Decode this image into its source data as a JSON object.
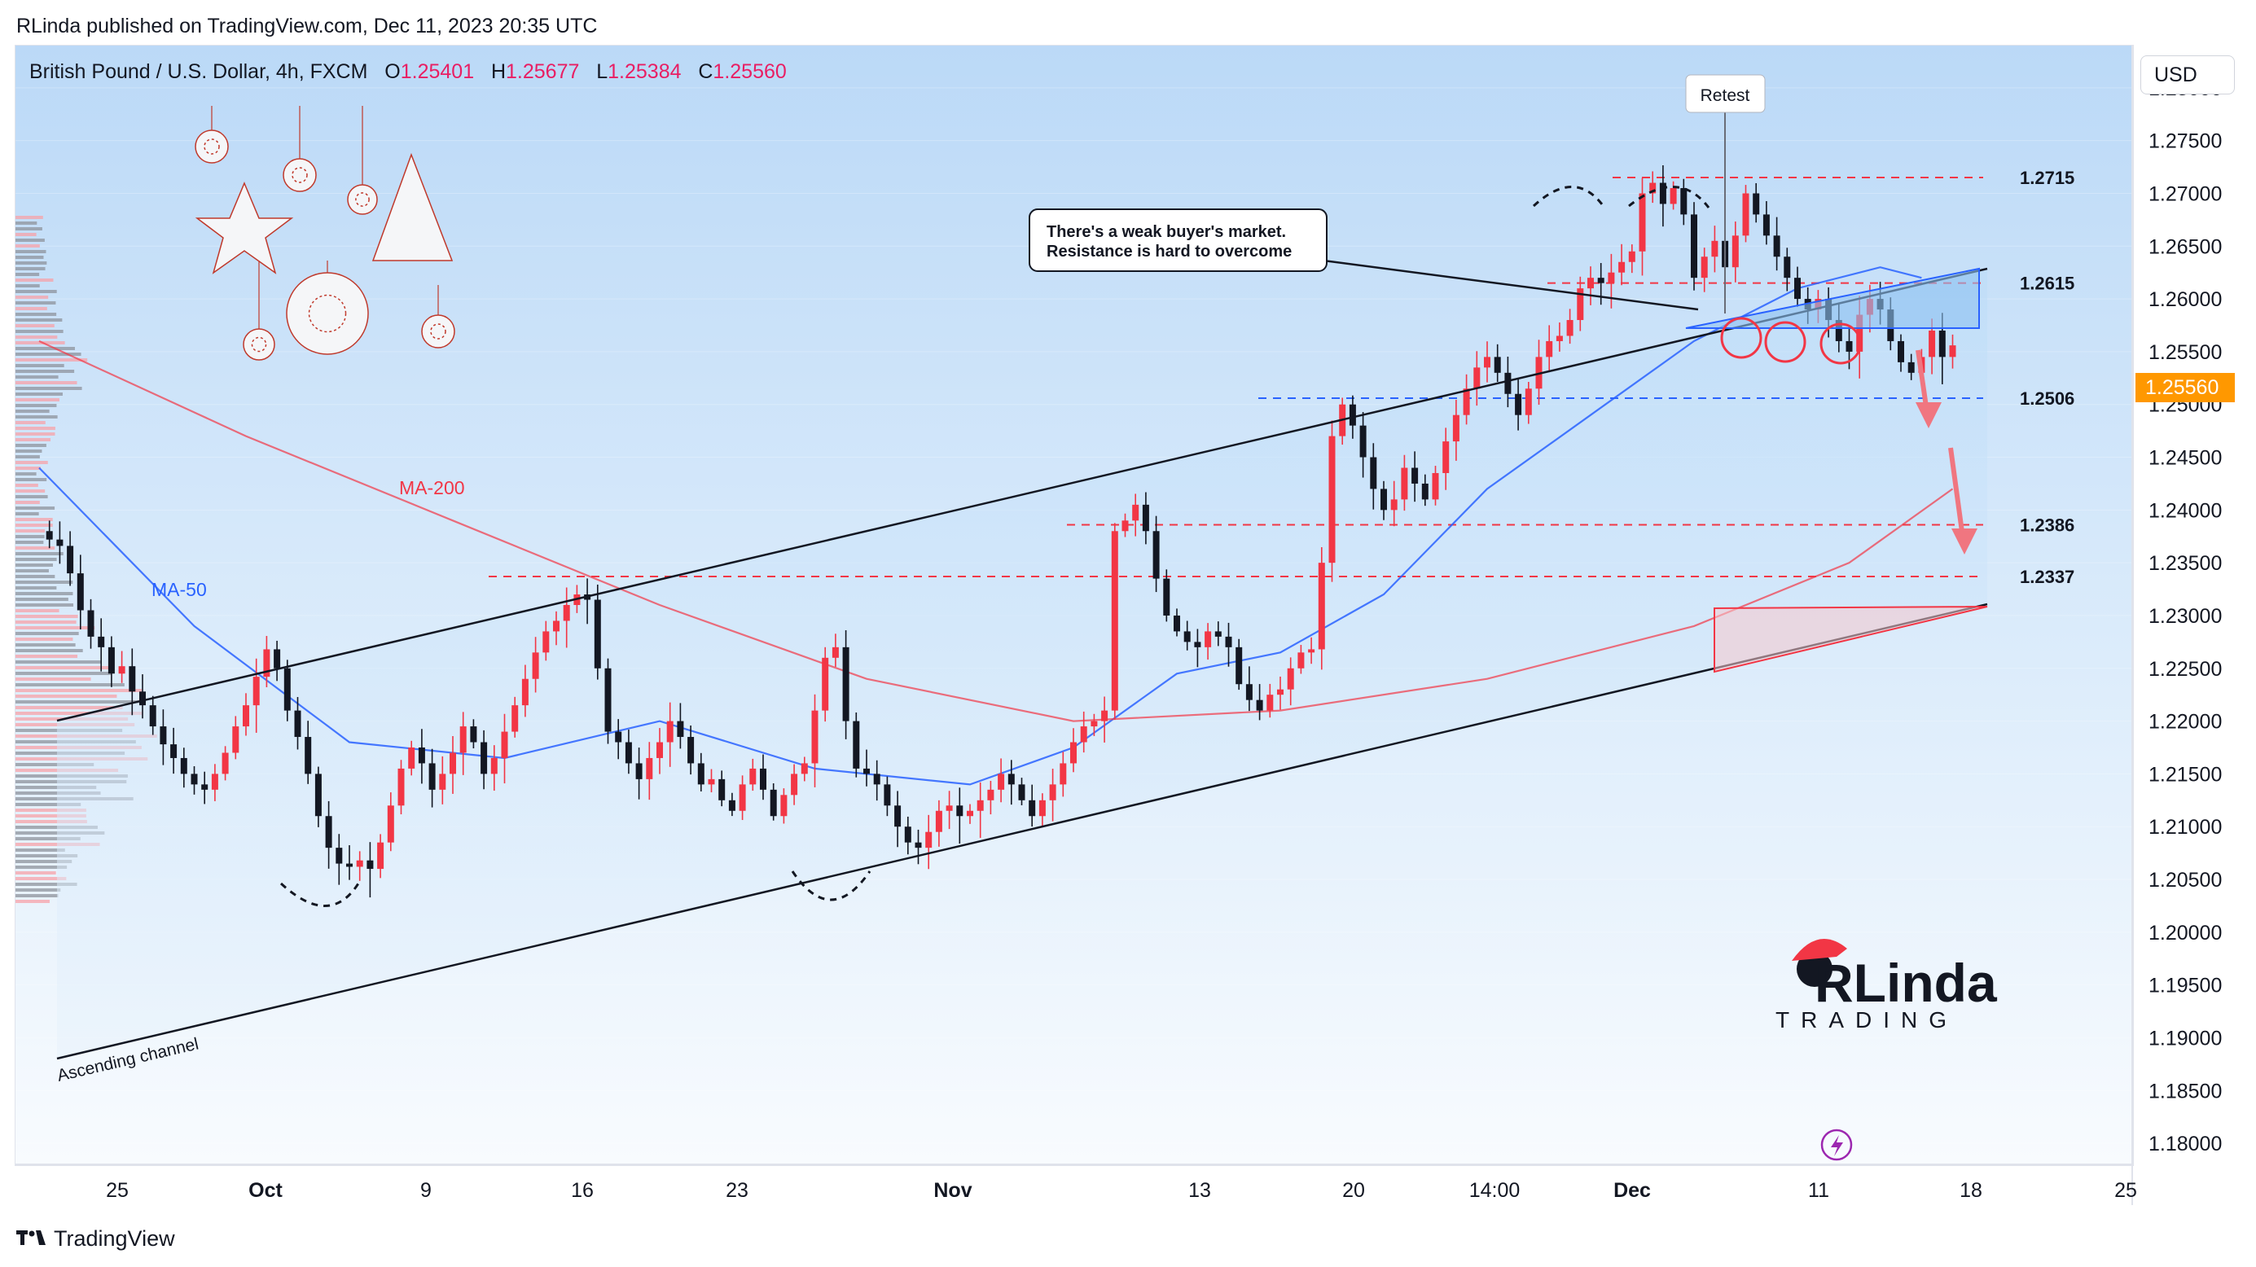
{
  "header": {
    "published_line": "RLinda published on TradingView.com, Dec 11, 2023 20:35 UTC"
  },
  "legend": {
    "symbol": "British Pound / U.S. Dollar, 4h, FXCM",
    "open_label": "O",
    "open": "1.25401",
    "high_label": "H",
    "high": "1.25677",
    "low_label": "L",
    "low": "1.25384",
    "close_label": "C",
    "close": "1.25560"
  },
  "currency_button": "USD",
  "last_price": "1.25560",
  "footer": {
    "brand": "TradingView"
  },
  "annotations": {
    "retest": "Retest",
    "callout_line1": "There's a weak buyer's market.",
    "callout_line2": "Resistance is hard to overcome",
    "ma200": "MA-200",
    "ma50": "MA-50",
    "channel": "Ascending channel"
  },
  "logo": {
    "text": "RLinda",
    "subtext": "TRADING"
  },
  "colors": {
    "up_candle": "#f23645",
    "down_candle": "#131722",
    "ma50": "#2962ff",
    "ma200": "#f23645",
    "level_red": "#f23645",
    "level_blue": "#2962ff",
    "last_price": "#ff9800",
    "background_top": "#bbd9f7"
  },
  "chart_data": {
    "type": "candlestick",
    "symbol": "GBPUSD",
    "timeframe": "4h",
    "ylim": [
      1.178,
      1.284
    ],
    "y_ticks": [
      "1.28000",
      "1.27500",
      "1.27000",
      "1.26500",
      "1.26000",
      "1.25500",
      "1.25000",
      "1.24500",
      "1.24000",
      "1.23500",
      "1.23000",
      "1.22500",
      "1.22000",
      "1.21500",
      "1.21000",
      "1.20500",
      "1.20000",
      "1.19500",
      "1.19000",
      "1.18500",
      "1.18000"
    ],
    "x_ticks": [
      "25",
      "Oct",
      "9",
      "16",
      "23",
      "Nov",
      "13",
      "20",
      "14:00",
      "Dec",
      "11",
      "18",
      "25"
    ],
    "x_ticks_bold": [
      "Oct",
      "Nov",
      "Dec"
    ],
    "levels": [
      {
        "label": "1.2715",
        "value": 1.2715,
        "color": "red"
      },
      {
        "label": "1.2615",
        "value": 1.2615,
        "color": "red"
      },
      {
        "label": "1.2506",
        "value": 1.2506,
        "color": "blue"
      },
      {
        "label": "1.2386",
        "value": 1.2386,
        "color": "red"
      },
      {
        "label": "1.2337",
        "value": 1.2337,
        "color": "red"
      }
    ],
    "close_path": [
      [
        0,
        1.238
      ],
      [
        1,
        1.2372
      ],
      [
        2,
        1.2366
      ],
      [
        3,
        1.234
      ],
      [
        4,
        1.2305
      ],
      [
        5,
        1.228
      ],
      [
        6,
        1.227
      ],
      [
        7,
        1.2245
      ],
      [
        8,
        1.2252
      ],
      [
        9,
        1.2228
      ],
      [
        10,
        1.2215
      ],
      [
        11,
        1.2195
      ],
      [
        12,
        1.2178
      ],
      [
        13,
        1.2165
      ],
      [
        14,
        1.215
      ],
      [
        15,
        1.214
      ],
      [
        16,
        1.2135
      ],
      [
        17,
        1.215
      ],
      [
        18,
        1.217
      ],
      [
        19,
        1.2195
      ],
      [
        20,
        1.2215
      ],
      [
        21,
        1.2242
      ],
      [
        22,
        1.2268
      ],
      [
        23,
        1.225
      ],
      [
        24,
        1.221
      ],
      [
        25,
        1.2185
      ],
      [
        26,
        1.215
      ],
      [
        27,
        1.211
      ],
      [
        28,
        1.208
      ],
      [
        29,
        1.2065
      ],
      [
        30,
        1.2062
      ],
      [
        31,
        1.2068
      ],
      [
        32,
        1.206
      ],
      [
        33,
        1.2085
      ],
      [
        34,
        1.212
      ],
      [
        35,
        1.2155
      ],
      [
        36,
        1.2175
      ],
      [
        37,
        1.216
      ],
      [
        38,
        1.2135
      ],
      [
        39,
        1.215
      ],
      [
        40,
        1.217
      ],
      [
        41,
        1.2195
      ],
      [
        42,
        1.218
      ],
      [
        43,
        1.215
      ],
      [
        44,
        1.2165
      ],
      [
        45,
        1.219
      ],
      [
        46,
        1.2215
      ],
      [
        47,
        1.224
      ],
      [
        48,
        1.2265
      ],
      [
        49,
        1.2285
      ],
      [
        50,
        1.2295
      ],
      [
        51,
        1.231
      ],
      [
        52,
        1.232
      ],
      [
        53,
        1.2315
      ],
      [
        54,
        1.225
      ],
      [
        55,
        1.219
      ],
      [
        56,
        1.218
      ],
      [
        57,
        1.216
      ],
      [
        58,
        1.2145
      ],
      [
        59,
        1.2165
      ],
      [
        60,
        1.218
      ],
      [
        61,
        1.22
      ],
      [
        62,
        1.2185
      ],
      [
        63,
        1.216
      ],
      [
        64,
        1.214
      ],
      [
        65,
        1.2145
      ],
      [
        66,
        1.2125
      ],
      [
        67,
        1.2115
      ],
      [
        68,
        1.214
      ],
      [
        69,
        1.2155
      ],
      [
        70,
        1.2135
      ],
      [
        71,
        1.211
      ],
      [
        72,
        1.213
      ],
      [
        73,
        1.215
      ],
      [
        74,
        1.216
      ],
      [
        75,
        1.221
      ],
      [
        76,
        1.226
      ],
      [
        77,
        1.227
      ],
      [
        78,
        1.22
      ],
      [
        79,
        1.2155
      ],
      [
        80,
        1.215
      ],
      [
        81,
        1.214
      ],
      [
        82,
        1.212
      ],
      [
        83,
        1.21
      ],
      [
        84,
        1.2085
      ],
      [
        85,
        1.208
      ],
      [
        86,
        1.2095
      ],
      [
        87,
        1.2115
      ],
      [
        88,
        1.212
      ],
      [
        89,
        1.211
      ],
      [
        90,
        1.2115
      ],
      [
        91,
        1.2125
      ],
      [
        92,
        1.2135
      ],
      [
        93,
        1.215
      ],
      [
        94,
        1.214
      ],
      [
        95,
        1.2125
      ],
      [
        96,
        1.211
      ],
      [
        97,
        1.2125
      ],
      [
        98,
        1.214
      ],
      [
        99,
        1.216
      ],
      [
        100,
        1.218
      ],
      [
        101,
        1.2195
      ],
      [
        102,
        1.22
      ],
      [
        103,
        1.221
      ],
      [
        104,
        1.238
      ],
      [
        105,
        1.239
      ],
      [
        106,
        1.2405
      ],
      [
        107,
        1.238
      ],
      [
        108,
        1.2335
      ],
      [
        109,
        1.23
      ],
      [
        110,
        1.2285
      ],
      [
        111,
        1.2275
      ],
      [
        112,
        1.227
      ],
      [
        113,
        1.2285
      ],
      [
        114,
        1.228
      ],
      [
        115,
        1.227
      ],
      [
        116,
        1.2235
      ],
      [
        117,
        1.222
      ],
      [
        118,
        1.221
      ],
      [
        119,
        1.2225
      ],
      [
        120,
        1.223
      ],
      [
        121,
        1.225
      ],
      [
        122,
        1.2265
      ],
      [
        123,
        1.2268
      ],
      [
        124,
        1.235
      ],
      [
        125,
        1.247
      ],
      [
        126,
        1.25
      ],
      [
        127,
        1.248
      ],
      [
        128,
        1.245
      ],
      [
        129,
        1.242
      ],
      [
        130,
        1.24
      ],
      [
        131,
        1.241
      ],
      [
        132,
        1.244
      ],
      [
        133,
        1.2425
      ],
      [
        134,
        1.241
      ],
      [
        135,
        1.2435
      ],
      [
        136,
        1.2465
      ],
      [
        137,
        1.249
      ],
      [
        138,
        1.2515
      ],
      [
        139,
        1.2535
      ],
      [
        140,
        1.2545
      ],
      [
        141,
        1.253
      ],
      [
        142,
        1.251
      ],
      [
        143,
        1.249
      ],
      [
        144,
        1.2515
      ],
      [
        145,
        1.2545
      ],
      [
        146,
        1.256
      ],
      [
        147,
        1.2565
      ],
      [
        148,
        1.258
      ],
      [
        149,
        1.261
      ],
      [
        150,
        1.262
      ],
      [
        151,
        1.2615
      ],
      [
        152,
        1.2625
      ],
      [
        153,
        1.2635
      ],
      [
        154,
        1.2645
      ],
      [
        155,
        1.27
      ],
      [
        156,
        1.271
      ],
      [
        157,
        1.269
      ],
      [
        158,
        1.2705
      ],
      [
        159,
        1.268
      ],
      [
        160,
        1.262
      ],
      [
        161,
        1.264
      ],
      [
        162,
        1.2655
      ],
      [
        163,
        1.263
      ],
      [
        164,
        1.266
      ],
      [
        165,
        1.27
      ],
      [
        166,
        1.268
      ],
      [
        167,
        1.266
      ],
      [
        168,
        1.264
      ],
      [
        169,
        1.262
      ],
      [
        170,
        1.26
      ],
      [
        171,
        1.259
      ],
      [
        172,
        1.26
      ],
      [
        173,
        1.258
      ],
      [
        174,
        1.256
      ],
      [
        175,
        1.255
      ],
      [
        176,
        1.2585
      ],
      [
        177,
        1.26
      ],
      [
        178,
        1.259
      ],
      [
        179,
        1.256
      ],
      [
        180,
        1.254
      ],
      [
        181,
        1.253
      ],
      [
        182,
        1.2545
      ],
      [
        183,
        1.257
      ],
      [
        184,
        1.2545
      ],
      [
        185,
        1.2556
      ]
    ],
    "series": [
      {
        "name": "MA-50",
        "points": [
          [
            0,
            1.244
          ],
          [
            15,
            1.229
          ],
          [
            30,
            1.218
          ],
          [
            45,
            1.2165
          ],
          [
            60,
            1.22
          ],
          [
            75,
            1.2155
          ],
          [
            90,
            1.214
          ],
          [
            100,
            1.2175
          ],
          [
            110,
            1.2245
          ],
          [
            120,
            1.2265
          ],
          [
            130,
            1.232
          ],
          [
            140,
            1.242
          ],
          [
            150,
            1.249
          ],
          [
            160,
            1.256
          ],
          [
            170,
            1.261
          ],
          [
            178,
            1.263
          ],
          [
            182,
            1.262
          ]
        ]
      },
      {
        "name": "MA-200",
        "points": [
          [
            0,
            1.256
          ],
          [
            20,
            1.247
          ],
          [
            40,
            1.239
          ],
          [
            60,
            1.231
          ],
          [
            80,
            1.224
          ],
          [
            100,
            1.22
          ],
          [
            120,
            1.221
          ],
          [
            140,
            1.224
          ],
          [
            160,
            1.229
          ],
          [
            175,
            1.235
          ],
          [
            185,
            1.242
          ]
        ]
      }
    ]
  }
}
